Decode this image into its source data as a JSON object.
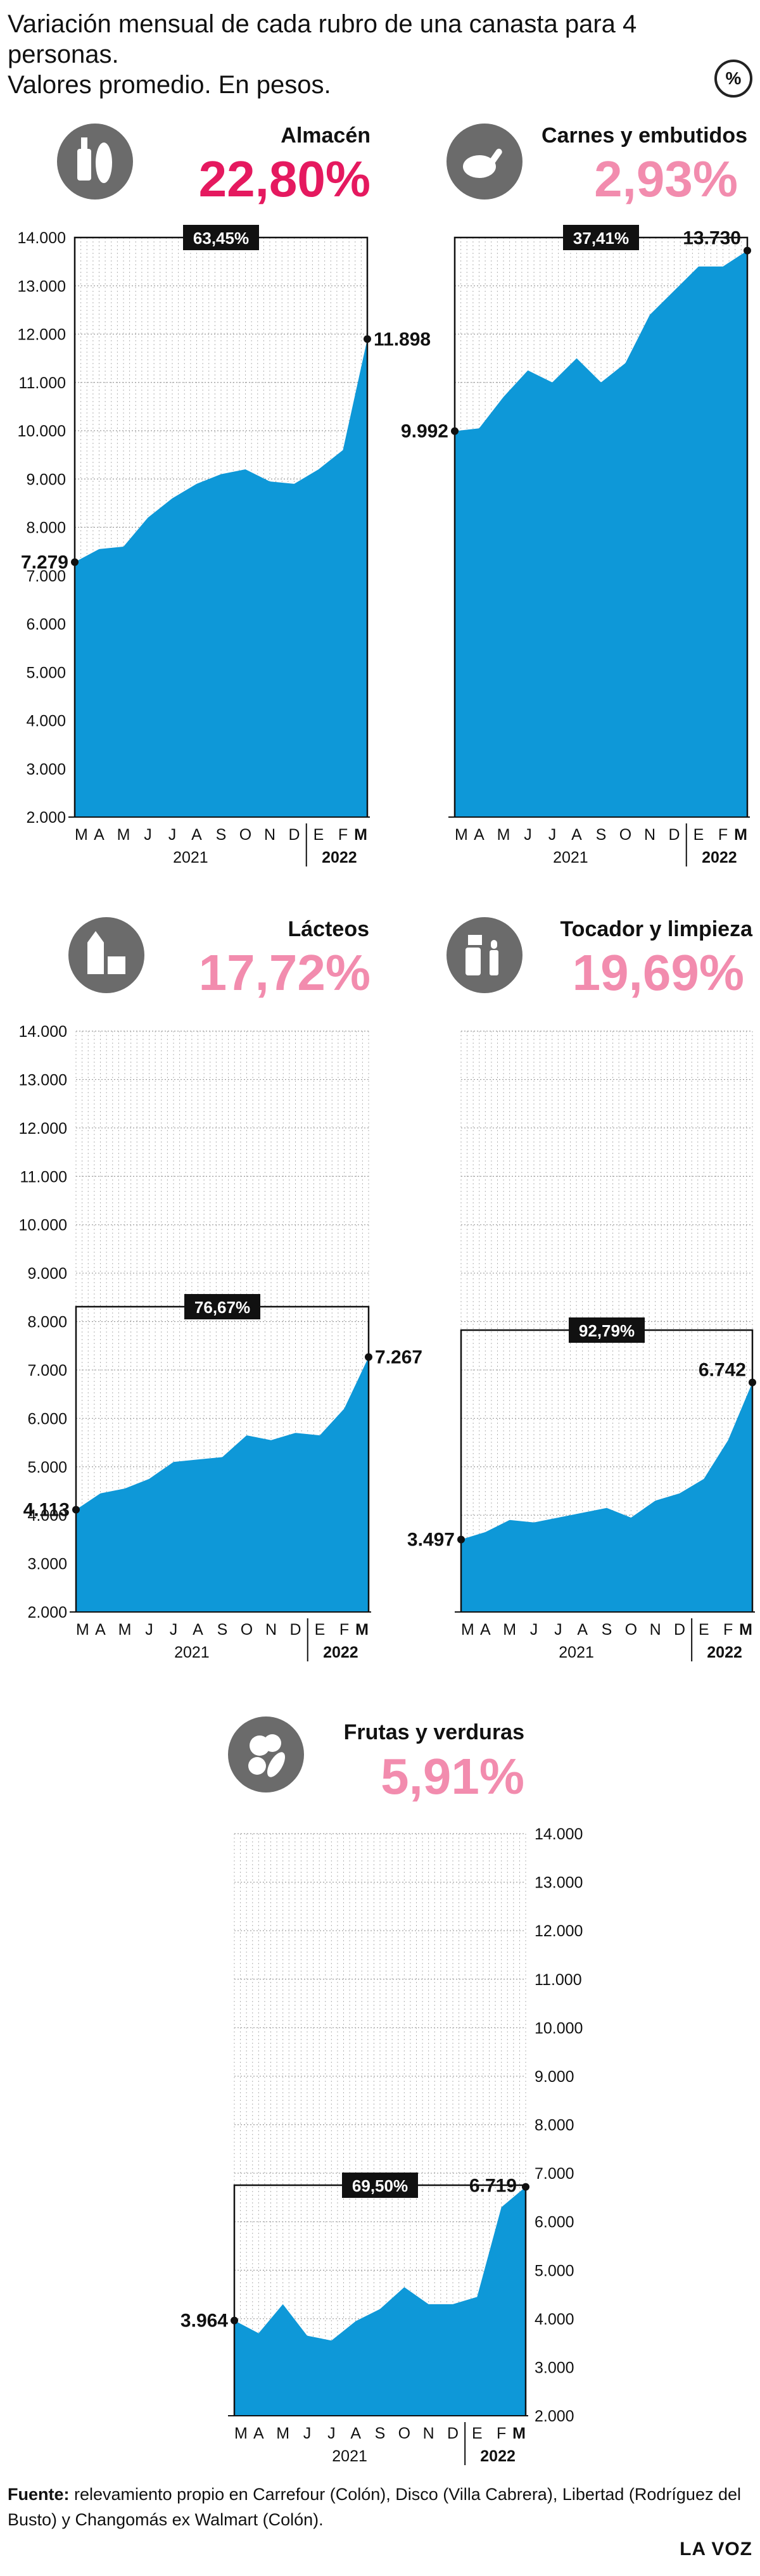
{
  "header": {
    "title_line1": "Variación mensual de cada rubro de una canasta para 4 personas.",
    "title_line2": "Valores promedio. En pesos.",
    "percent_icon": "%"
  },
  "footer": {
    "source_label": "Fuente:",
    "source_text": " relevamiento propio en Carrefour (Colón), Disco (Villa Cabrera), Libertad (Rodríguez del Busto) y Changomás ex Walmart (Colón).",
    "brand": "LA VOZ"
  },
  "colors": {
    "area": "#0e98d8",
    "pct_strong": "#e5195f",
    "pct_light": "#f28cae",
    "icon_bg": "#6b6b6b",
    "badge_bg": "#111111"
  },
  "chart_data": [
    {
      "type": "area",
      "title": "Almacén",
      "percent": "22,80%",
      "percent_style": "strong",
      "icon": "grocery-bottle-bread-icon",
      "x": [
        "M",
        "A",
        "M",
        "J",
        "J",
        "A",
        "S",
        "O",
        "N",
        "D",
        "E",
        "F",
        "M"
      ],
      "year_labels": [
        "2021",
        "2022"
      ],
      "values": [
        7279,
        7550,
        7600,
        8200,
        8600,
        8900,
        9100,
        9200,
        8950,
        8900,
        9200,
        9600,
        11898
      ],
      "ylim": [
        2000,
        14000
      ],
      "yticks": [
        "2.000",
        "3.000",
        "4.000",
        "5.000",
        "6.000",
        "7.000",
        "8.000",
        "9.000",
        "10.000",
        "11.000",
        "12.000",
        "13.000",
        "14.000"
      ],
      "start_label": "7.279",
      "end_label": "11.898",
      "variation_box": "63,45%"
    },
    {
      "type": "area",
      "title": "Carnes y embutidos",
      "percent": "2,93%",
      "percent_style": "light",
      "icon": "chicken-leg-icon",
      "x": [
        "M",
        "A",
        "M",
        "J",
        "J",
        "A",
        "S",
        "O",
        "N",
        "D",
        "E",
        "F",
        "M"
      ],
      "year_labels": [
        "2021",
        "2022"
      ],
      "values": [
        9992,
        10050,
        10700,
        11250,
        11000,
        11500,
        11000,
        11400,
        12400,
        12900,
        13400,
        13400,
        13730
      ],
      "ylim": [
        2000,
        14000
      ],
      "start_label": "9.992",
      "end_label": "13.730",
      "variation_box": "37,41%"
    },
    {
      "type": "area",
      "title": "Lácteos",
      "percent": "17,72%",
      "percent_style": "light",
      "icon": "dairy-milk-cheese-icon",
      "x": [
        "M",
        "A",
        "M",
        "J",
        "J",
        "A",
        "S",
        "O",
        "N",
        "D",
        "E",
        "F",
        "M"
      ],
      "year_labels": [
        "2021",
        "2022"
      ],
      "values": [
        4113,
        4450,
        4550,
        4750,
        5100,
        5150,
        5200,
        5650,
        5550,
        5700,
        5650,
        6200,
        7267
      ],
      "ylim": [
        2000,
        14000
      ],
      "yticks": [
        "2.000",
        "3.000",
        "4.000",
        "5.000",
        "6.000",
        "7.000",
        "8.000",
        "9.000",
        "10.000",
        "11.000",
        "12.000",
        "13.000",
        "14.000"
      ],
      "start_label": "4.113",
      "end_label": "7.267",
      "variation_box": "76,67%"
    },
    {
      "type": "area",
      "title": "Tocador y limpieza",
      "percent": "19,69%",
      "percent_style": "light",
      "icon": "cleaning-spray-icon",
      "x": [
        "M",
        "A",
        "M",
        "J",
        "J",
        "A",
        "S",
        "O",
        "N",
        "D",
        "E",
        "F",
        "M"
      ],
      "year_labels": [
        "2021",
        "2022"
      ],
      "values": [
        3497,
        3650,
        3900,
        3850,
        3950,
        4050,
        4150,
        3950,
        4300,
        4450,
        4750,
        5550,
        6742
      ],
      "ylim": [
        2000,
        14000
      ],
      "start_label": "3.497",
      "end_label": "6.742",
      "variation_box": "92,79%"
    },
    {
      "type": "area",
      "title": "Frutas y verduras",
      "percent": "5,91%",
      "percent_style": "light",
      "icon": "fruits-vegetables-icon",
      "x": [
        "M",
        "A",
        "M",
        "J",
        "J",
        "A",
        "S",
        "O",
        "N",
        "D",
        "E",
        "F",
        "M"
      ],
      "year_labels": [
        "2021",
        "2022"
      ],
      "values": [
        3964,
        3700,
        4300,
        3650,
        3550,
        3950,
        4200,
        4650,
        4300,
        4300,
        4450,
        6300,
        6719
      ],
      "ylim": [
        2000,
        14000
      ],
      "yticks": [
        "2.000",
        "3.000",
        "4.000",
        "5.000",
        "6.000",
        "7.000",
        "8.000",
        "9.000",
        "10.000",
        "11.000",
        "12.000",
        "13.000",
        "14.000"
      ],
      "start_label": "3.964",
      "end_label": "6.719",
      "variation_box": "69,50%"
    }
  ]
}
